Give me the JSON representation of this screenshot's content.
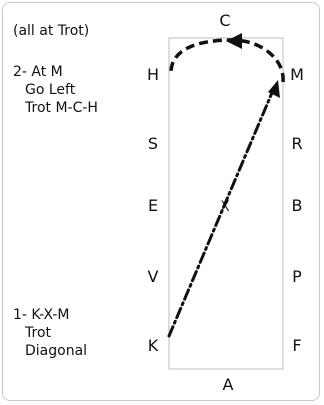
{
  "header_note": "(all at Trot)",
  "step2": {
    "line1": "2- At M",
    "line2": "Go Left",
    "line3": "Trot M-C-H"
  },
  "step1": {
    "line1": "1- K-X-M",
    "line2": "Trot",
    "line3": "Diagonal"
  },
  "arena_letters": {
    "top": "C",
    "bottom": "A",
    "left": [
      "H",
      "S",
      "E",
      "V",
      "K"
    ],
    "right": [
      "M",
      "R",
      "B",
      "P",
      "F"
    ],
    "center": "X"
  },
  "colors": {
    "line": "#111111",
    "arena_border": "#c8c8c8"
  }
}
